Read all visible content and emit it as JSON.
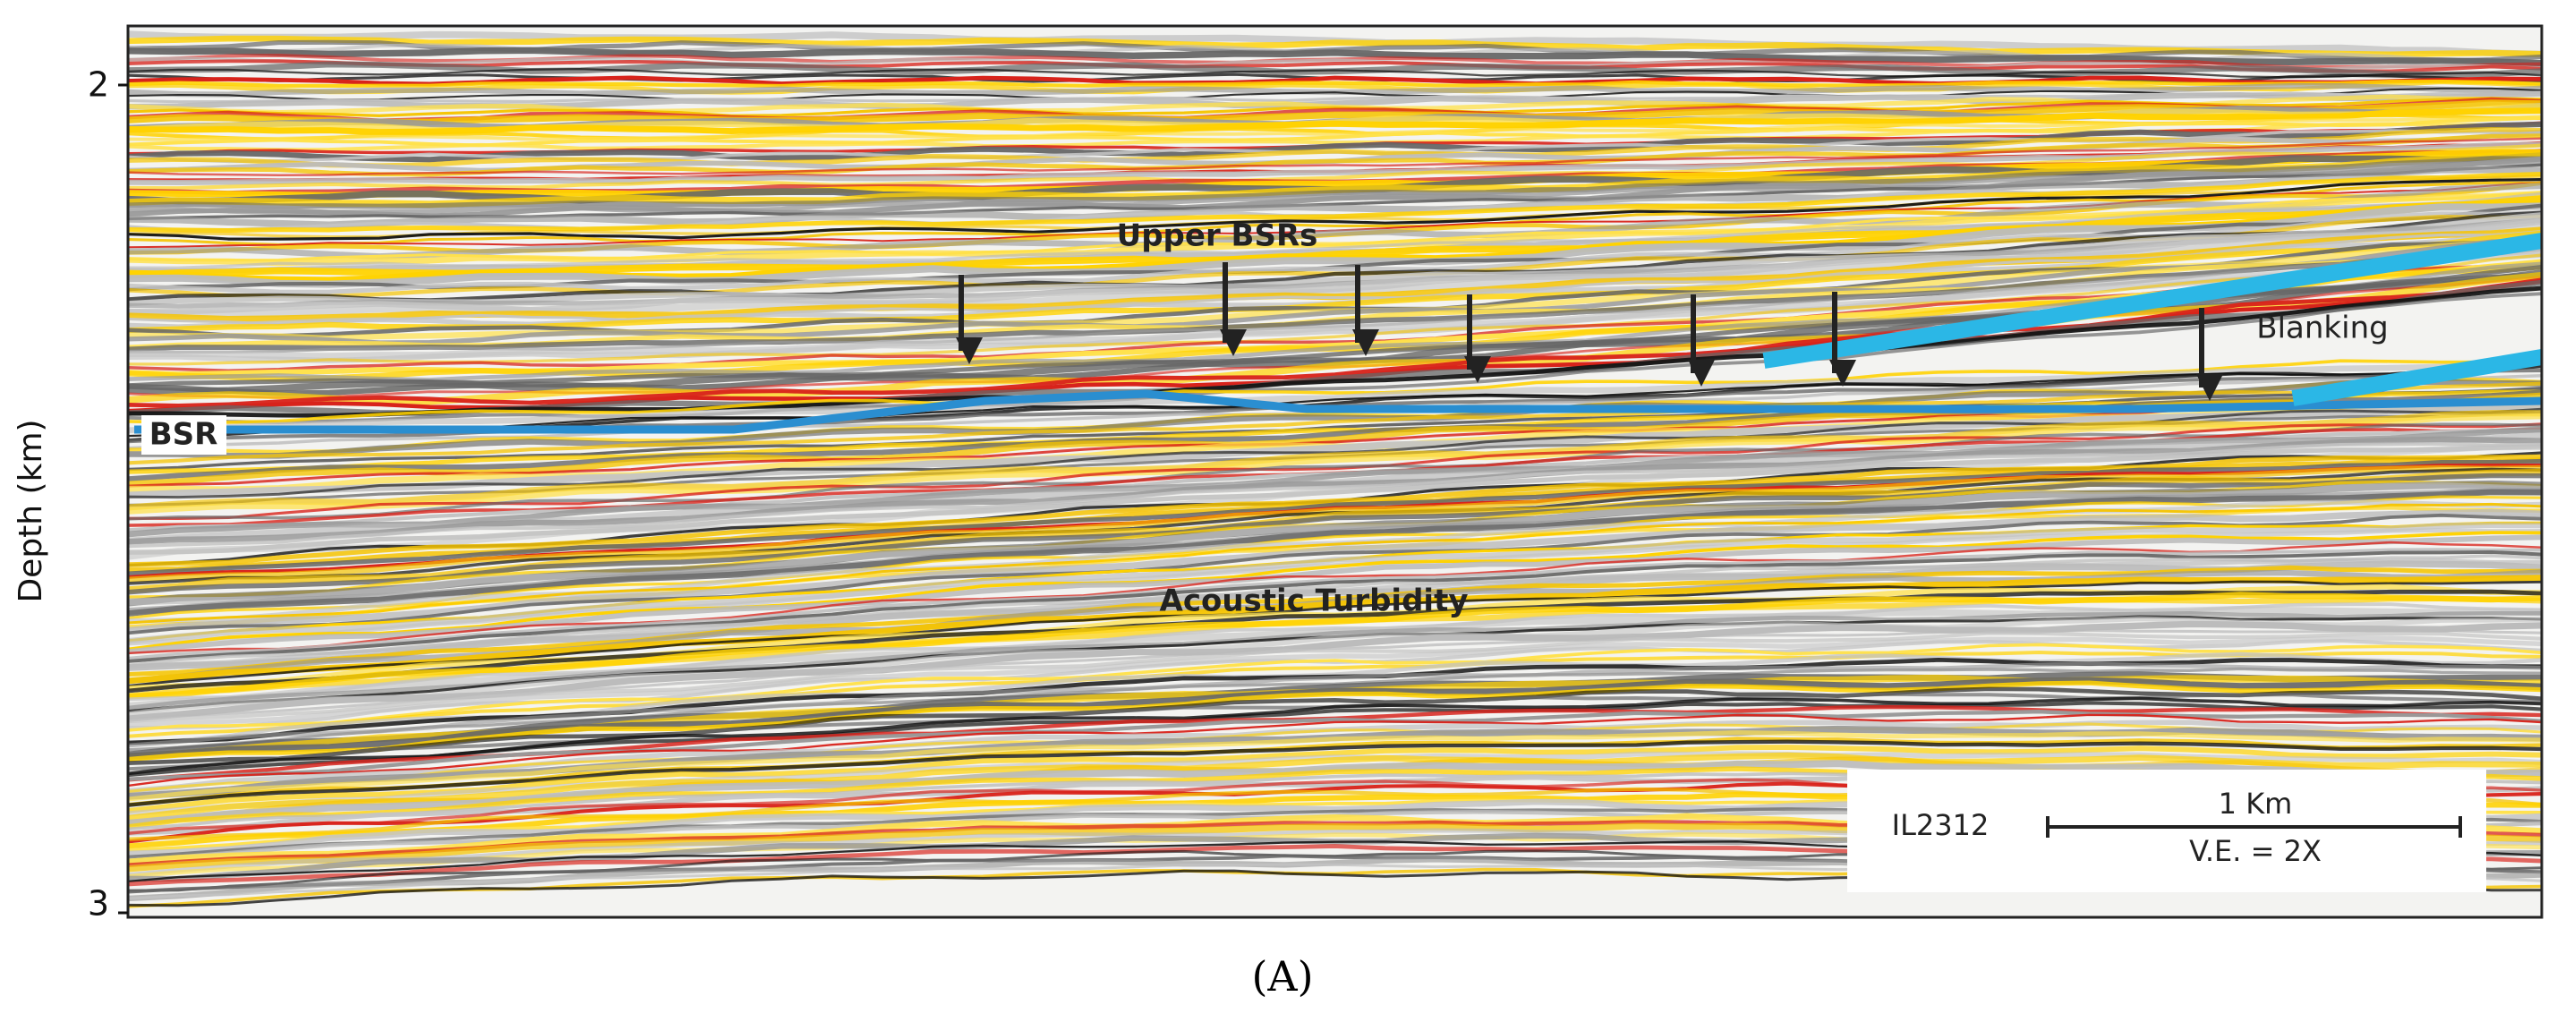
{
  "axis": {
    "label": "Depth (km)",
    "ticks": [
      2,
      3
    ]
  },
  "annotations": {
    "upper_bsrs": "Upper BSRs",
    "blanking": "Blanking",
    "bsr": "BSR",
    "acoustic_turbidity": "Acoustic Turbidity"
  },
  "scale_box": {
    "line_id": "IL2312",
    "length": "1 Km",
    "vertical_exaggeration": "V.E. = 2X"
  },
  "caption": "(A)"
}
